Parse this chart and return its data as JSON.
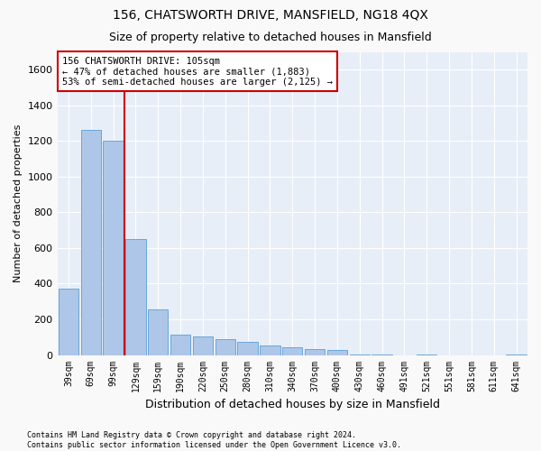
{
  "title1": "156, CHATSWORTH DRIVE, MANSFIELD, NG18 4QX",
  "title2": "Size of property relative to detached houses in Mansfield",
  "xlabel": "Distribution of detached houses by size in Mansfield",
  "ylabel": "Number of detached properties",
  "footnote": "Contains HM Land Registry data © Crown copyright and database right 2024.\nContains public sector information licensed under the Open Government Licence v3.0.",
  "categories": [
    "39sqm",
    "69sqm",
    "99sqm",
    "129sqm",
    "159sqm",
    "190sqm",
    "220sqm",
    "250sqm",
    "280sqm",
    "310sqm",
    "340sqm",
    "370sqm",
    "400sqm",
    "430sqm",
    "460sqm",
    "491sqm",
    "521sqm",
    "551sqm",
    "581sqm",
    "611sqm",
    "641sqm"
  ],
  "values": [
    370,
    1260,
    1200,
    650,
    255,
    115,
    105,
    90,
    75,
    55,
    45,
    35,
    30,
    5,
    5,
    0,
    5,
    0,
    0,
    0,
    5
  ],
  "bar_color": "#aec6e8",
  "bar_edge_color": "#5a9fd4",
  "background_color": "#e8eef7",
  "grid_color": "#ffffff",
  "annotation_box_text": "156 CHATSWORTH DRIVE: 105sqm\n← 47% of detached houses are smaller (1,883)\n53% of semi-detached houses are larger (2,125) →",
  "annotation_box_edge_color": "#cc0000",
  "vline_color": "#cc0000",
  "vline_position": 2.5,
  "ylim": [
    0,
    1700
  ],
  "yticks": [
    0,
    200,
    400,
    600,
    800,
    1000,
    1200,
    1400,
    1600
  ],
  "fig_facecolor": "#f9f9f9"
}
